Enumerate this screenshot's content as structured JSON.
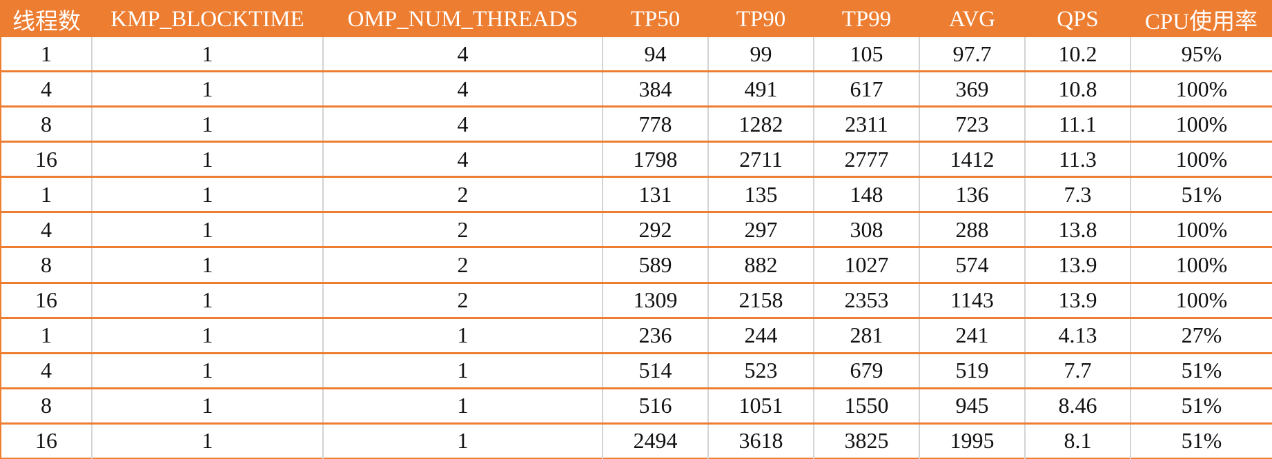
{
  "table": {
    "headers": [
      "线程数",
      "KMP_BLOCKTIME",
      "OMP_NUM_THREADS",
      "TP50",
      "TP90",
      "TP99",
      "AVG",
      "QPS",
      "CPU使用率"
    ],
    "rows": [
      [
        "1",
        "1",
        "4",
        "94",
        "99",
        "105",
        "97.7",
        "10.2",
        "95%"
      ],
      [
        "4",
        "1",
        "4",
        "384",
        "491",
        "617",
        "369",
        "10.8",
        "100%"
      ],
      [
        "8",
        "1",
        "4",
        "778",
        "1282",
        "2311",
        "723",
        "11.1",
        "100%"
      ],
      [
        "16",
        "1",
        "4",
        "1798",
        "2711",
        "2777",
        "1412",
        "11.3",
        "100%"
      ],
      [
        "1",
        "1",
        "2",
        "131",
        "135",
        "148",
        "136",
        "7.3",
        "51%"
      ],
      [
        "4",
        "1",
        "2",
        "292",
        "297",
        "308",
        "288",
        "13.8",
        "100%"
      ],
      [
        "8",
        "1",
        "2",
        "589",
        "882",
        "1027",
        "574",
        "13.9",
        "100%"
      ],
      [
        "16",
        "1",
        "2",
        "1309",
        "2158",
        "2353",
        "1143",
        "13.9",
        "100%"
      ],
      [
        "1",
        "1",
        "1",
        "236",
        "244",
        "281",
        "241",
        "4.13",
        "27%"
      ],
      [
        "4",
        "1",
        "1",
        "514",
        "523",
        "679",
        "519",
        "7.7",
        "51%"
      ],
      [
        "8",
        "1",
        "1",
        "516",
        "1051",
        "1550",
        "945",
        "8.46",
        "51%"
      ],
      [
        "16",
        "1",
        "1",
        "2494",
        "3618",
        "3825",
        "1995",
        "8.1",
        "51%"
      ]
    ]
  },
  "colors": {
    "header_background": "#ED7D31",
    "header_text": "#FFFFFF",
    "row_separator": "#ED7D31",
    "column_separator": "#D3D3D3"
  }
}
